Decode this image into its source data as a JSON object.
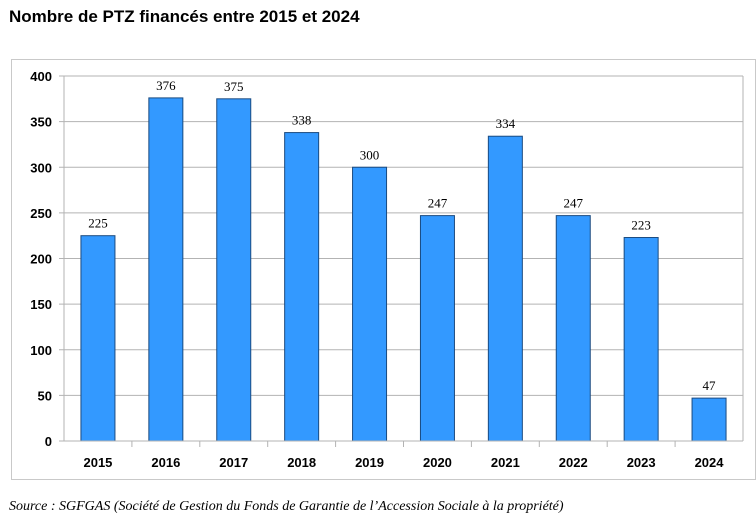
{
  "title": "Nombre de PTZ financés entre 2015 et 2024",
  "source": "Source : SGFGAS (Société de Gestion du Fonds de Garantie de l’Accession Sociale à la propriété)",
  "colors": {
    "bar": "#3399ff",
    "bar_stroke": "#1a4a80",
    "grid": "#b3b3b3",
    "axis": "#b3b3b3"
  },
  "chart_data": {
    "type": "bar",
    "title": "Nombre de PTZ financés entre 2015 et 2024",
    "xlabel": "",
    "ylabel": "",
    "categories": [
      "2015",
      "2016",
      "2017",
      "2018",
      "2019",
      "2020",
      "2021",
      "2022",
      "2023",
      "2024"
    ],
    "values": [
      225,
      376,
      375,
      338,
      300,
      247,
      334,
      247,
      223,
      47
    ],
    "ylim": [
      0,
      400
    ],
    "yticks": [
      0,
      50,
      100,
      150,
      200,
      250,
      300,
      350,
      400
    ],
    "grid": true,
    "data_labels": true,
    "legend": "none"
  }
}
